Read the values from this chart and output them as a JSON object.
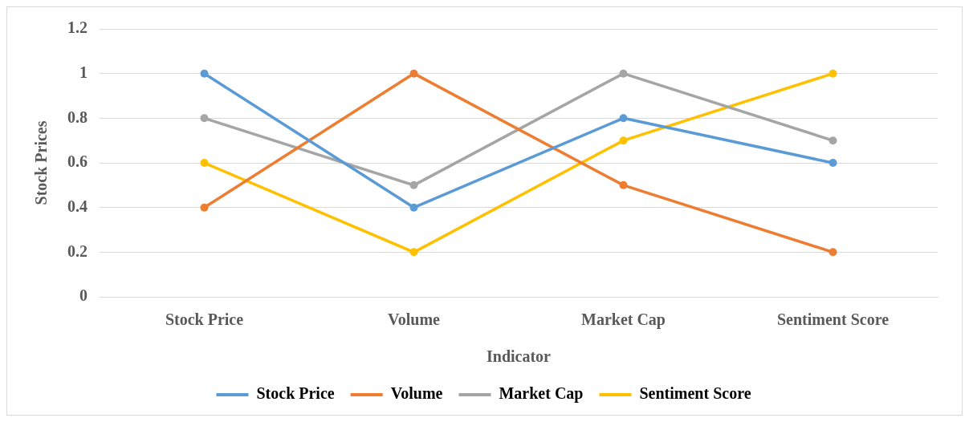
{
  "chart_data": {
    "type": "line",
    "xlabel": "Indicator",
    "ylabel": "Stock Prices",
    "categories": [
      "Stock Price",
      "Volume",
      "Market Cap",
      "Sentiment Score"
    ],
    "series": [
      {
        "name": "Stock Price",
        "color": "#5b9bd5",
        "values": [
          1,
          0.4,
          0.8,
          0.6
        ]
      },
      {
        "name": "Volume",
        "color": "#ed7d31",
        "values": [
          0.4,
          1,
          0.5,
          0.2
        ]
      },
      {
        "name": "Market Cap",
        "color": "#a5a5a5",
        "values": [
          0.8,
          0.5,
          1,
          0.7
        ]
      },
      {
        "name": "Sentiment Score",
        "color": "#ffc000",
        "values": [
          0.6,
          0.2,
          0.7,
          1
        ]
      }
    ],
    "ylim": [
      0,
      1.2
    ],
    "yticks": [
      0,
      0.2,
      0.4,
      0.6,
      0.8,
      1,
      1.2
    ],
    "grid": "y",
    "legend": "bottom",
    "marker": "circle",
    "line_style": "solid"
  }
}
